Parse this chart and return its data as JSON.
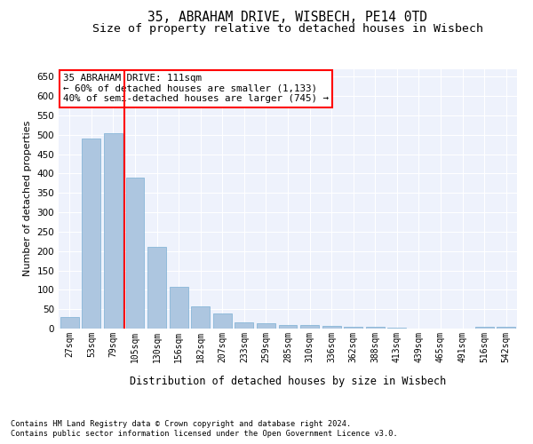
{
  "title_line1": "35, ABRAHAM DRIVE, WISBECH, PE14 0TD",
  "title_line2": "Size of property relative to detached houses in Wisbech",
  "xlabel": "Distribution of detached houses by size in Wisbech",
  "ylabel": "Number of detached properties",
  "footer_line1": "Contains HM Land Registry data © Crown copyright and database right 2024.",
  "footer_line2": "Contains public sector information licensed under the Open Government Licence v3.0.",
  "categories": [
    "27sqm",
    "53sqm",
    "79sqm",
    "105sqm",
    "130sqm",
    "156sqm",
    "182sqm",
    "207sqm",
    "233sqm",
    "259sqm",
    "285sqm",
    "310sqm",
    "336sqm",
    "362sqm",
    "388sqm",
    "413sqm",
    "439sqm",
    "465sqm",
    "491sqm",
    "516sqm",
    "542sqm"
  ],
  "values": [
    30,
    490,
    505,
    390,
    210,
    108,
    58,
    40,
    17,
    13,
    10,
    10,
    8,
    5,
    5,
    3,
    1,
    1,
    0,
    4,
    4
  ],
  "bar_color": "#adc6e0",
  "bar_edge_color": "#7bafd4",
  "vline_x": 2.5,
  "vline_color": "red",
  "annotation_title": "35 ABRAHAM DRIVE: 111sqm",
  "annotation_line1": "← 60% of detached houses are smaller (1,133)",
  "annotation_line2": "40% of semi-detached houses are larger (745) →",
  "annotation_box_color": "red",
  "annotation_bg": "white",
  "ylim": [
    0,
    670
  ],
  "yticks": [
    0,
    50,
    100,
    150,
    200,
    250,
    300,
    350,
    400,
    450,
    500,
    550,
    600,
    650
  ],
  "bg_color": "#eef2fc",
  "grid_color": "white",
  "title_fontsize": 10.5,
  "subtitle_fontsize": 9.5,
  "ylabel_fontsize": 8,
  "tick_fontsize": 7,
  "footer_fontsize": 6.2,
  "xlabel_fontsize": 8.5,
  "ann_fontsize": 7.8
}
